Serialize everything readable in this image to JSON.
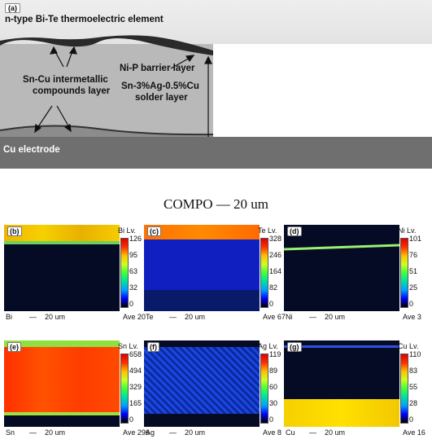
{
  "sem": {
    "label": "(a)",
    "title": "n-type Bi-Te thermoelectric element",
    "nip": "Ni-P barrier layer",
    "sncu_1": "Sn-Cu intermetallic",
    "sncu_2": "compounds layer",
    "solder_1": "Sn-3%Ag-0.5%Cu",
    "solder_2": "solder layer",
    "cu": "Cu electrode"
  },
  "compo": "COMPO    —    20 um",
  "panels": [
    {
      "label": "(b)",
      "el": "Bi",
      "lv": "Bi Lv.",
      "ticks": [
        "126",
        "95",
        "63",
        "32",
        "0"
      ],
      "ave": "Ave 20",
      "scale": "20 um",
      "scale_dash": "—"
    },
    {
      "label": "(c)",
      "el": "Te",
      "lv": "Te Lv.",
      "ticks": [
        "328",
        "246",
        "164",
        "82",
        "0"
      ],
      "ave": "Ave 67",
      "scale": "20 um",
      "scale_dash": "—"
    },
    {
      "label": "(d)",
      "el": "Ni",
      "lv": "Ni Lv.",
      "ticks": [
        "101",
        "76",
        "51",
        "25",
        "0"
      ],
      "ave": "Ave 3",
      "scale": "20 um",
      "scale_dash": "—"
    },
    {
      "label": "(e)",
      "el": "Sn",
      "lv": "Sn Lv.",
      "ticks": [
        "658",
        "494",
        "329",
        "165",
        "0"
      ],
      "ave": "Ave 296",
      "scale": "20 um",
      "scale_dash": "—"
    },
    {
      "label": "(f)",
      "el": "Ag",
      "lv": "Ag Lv.",
      "ticks": [
        "119",
        "89",
        "60",
        "30",
        "0"
      ],
      "ave": "Ave 8",
      "scale": "20 um",
      "scale_dash": "—"
    },
    {
      "label": "(g)",
      "el": "Cu",
      "lv": "Cu Lv.",
      "ticks": [
        "110",
        "83",
        "55",
        "28",
        "0"
      ],
      "ave": "Ave 16",
      "scale": "20 um",
      "scale_dash": "—"
    }
  ]
}
